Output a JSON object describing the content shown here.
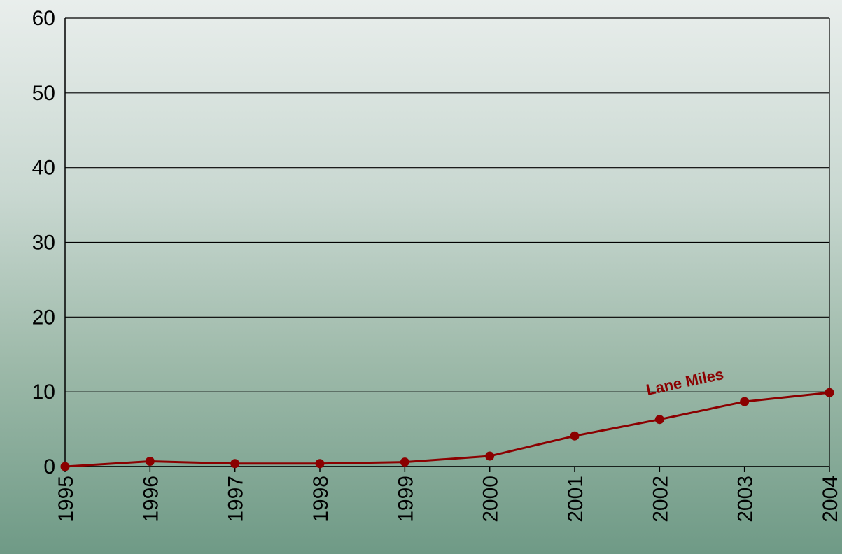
{
  "chart_data": {
    "type": "line",
    "title": "",
    "xlabel": "",
    "ylabel": "",
    "categories": [
      "1995",
      "1996",
      "1997",
      "1998",
      "1999",
      "2000",
      "2001",
      "2002",
      "2003",
      "2004"
    ],
    "ylim": [
      0,
      60
    ],
    "yticks": [
      "0",
      "10",
      "20",
      "30",
      "40",
      "50",
      "60"
    ],
    "grid": "horizontal",
    "series": [
      {
        "name": "Lane Miles",
        "color": "#8b0000",
        "values": [
          0,
          0.7,
          0.4,
          0.4,
          0.6,
          1.4,
          4.1,
          6.3,
          8.7,
          9.9
        ]
      }
    ]
  }
}
